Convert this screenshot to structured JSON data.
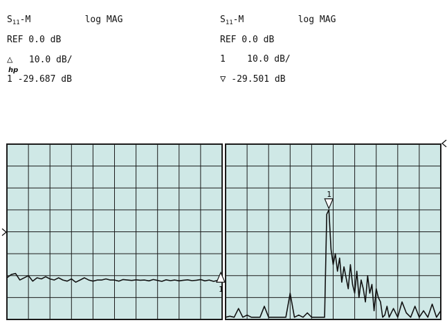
{
  "left_header": {
    "param_main": "S",
    "param_sub": "11",
    "param_suffix": "-M",
    "format": "log MAG",
    "ref": "REF 0.0 dB",
    "scale": "10.0 dB/",
    "marker_num": "1",
    "marker_value": "-29.687 dB"
  },
  "right_header": {
    "param_main": "S",
    "param_sub": "11",
    "param_suffix": "-M",
    "format": "log MAG",
    "ref": "REF 0.0 dB",
    "scale": "10.0 dB/",
    "marker_num": "1",
    "marker_value": "-29.501 dB"
  },
  "logo": "hp",
  "colors": {
    "grid_bg": "#cfe8e6",
    "grid_line": "#1a1a1a",
    "trace": "#111111"
  },
  "chart_data": [
    {
      "type": "line",
      "name_hint": "left panel",
      "divisions_x": 10,
      "divisions_y": 8,
      "grid": true,
      "ylim": [
        -80,
        0
      ],
      "x": [
        0,
        2,
        4,
        6,
        8,
        10,
        12,
        14,
        16,
        18,
        20,
        22,
        24,
        26,
        28,
        30,
        32,
        34,
        36,
        38,
        40,
        42,
        44,
        46,
        48,
        50,
        52,
        54,
        56,
        58,
        60,
        62,
        64,
        66,
        68,
        70,
        72,
        74,
        76,
        78,
        80,
        82,
        84,
        86,
        88,
        90,
        92,
        94,
        96,
        98,
        100
      ],
      "values": [
        -61,
        -59.5,
        -59,
        -62,
        -61,
        -60,
        -62.5,
        -61,
        -61.5,
        -60.5,
        -61.5,
        -62,
        -61,
        -62,
        -62.5,
        -61.5,
        -63,
        -62,
        -61,
        -62,
        -62.5,
        -62,
        -62,
        -61.5,
        -62,
        -62,
        -62.5,
        -61.8,
        -62,
        -62.2,
        -61.9,
        -62.1,
        -62,
        -62.4,
        -61.8,
        -62.2,
        -62.6,
        -61.9,
        -62.3,
        -62,
        -62.4,
        -62.1,
        -61.9,
        -62.3,
        -62.1,
        -61.8,
        -62.4,
        -62,
        -62.6,
        -62.2,
        -63
      ]
    },
    {
      "type": "line",
      "name_hint": "right panel",
      "divisions_x": 10,
      "divisions_y": 8,
      "grid": true,
      "ylim": [
        -80,
        0
      ],
      "x": [
        0,
        2,
        4,
        6,
        8,
        10,
        12,
        14,
        16,
        18,
        20,
        22,
        24,
        26,
        28,
        30,
        32,
        34,
        36,
        38,
        40,
        42,
        44,
        45,
        46,
        47,
        48,
        49,
        50,
        51,
        52,
        53,
        54,
        55,
        56,
        57,
        58,
        59,
        60,
        61,
        62,
        63,
        64,
        65,
        66,
        67,
        68,
        69,
        70,
        71,
        72,
        73,
        74,
        75,
        76,
        78,
        80,
        82,
        84,
        86,
        88,
        90,
        92,
        94,
        96,
        98,
        100
      ],
      "values": [
        -79,
        -78.5,
        -79,
        -75,
        -79,
        -78,
        -79,
        -79,
        -79,
        -74,
        -79,
        -79,
        -79,
        -79,
        -79,
        -68,
        -79,
        -78,
        -79,
        -77,
        -79,
        -79,
        -79,
        -79,
        -79,
        -32,
        -30,
        -48,
        -55,
        -50,
        -58,
        -52,
        -63,
        -56,
        -61,
        -66,
        -55,
        -64,
        -68,
        -58,
        -70,
        -62,
        -66,
        -72,
        -60,
        -68,
        -64,
        -76,
        -66,
        -70,
        -72,
        -79,
        -78,
        -74,
        -79,
        -75,
        -79,
        -72,
        -77,
        -79,
        -74,
        -79,
        -76,
        -79,
        -73,
        -79,
        -76
      ]
    }
  ]
}
